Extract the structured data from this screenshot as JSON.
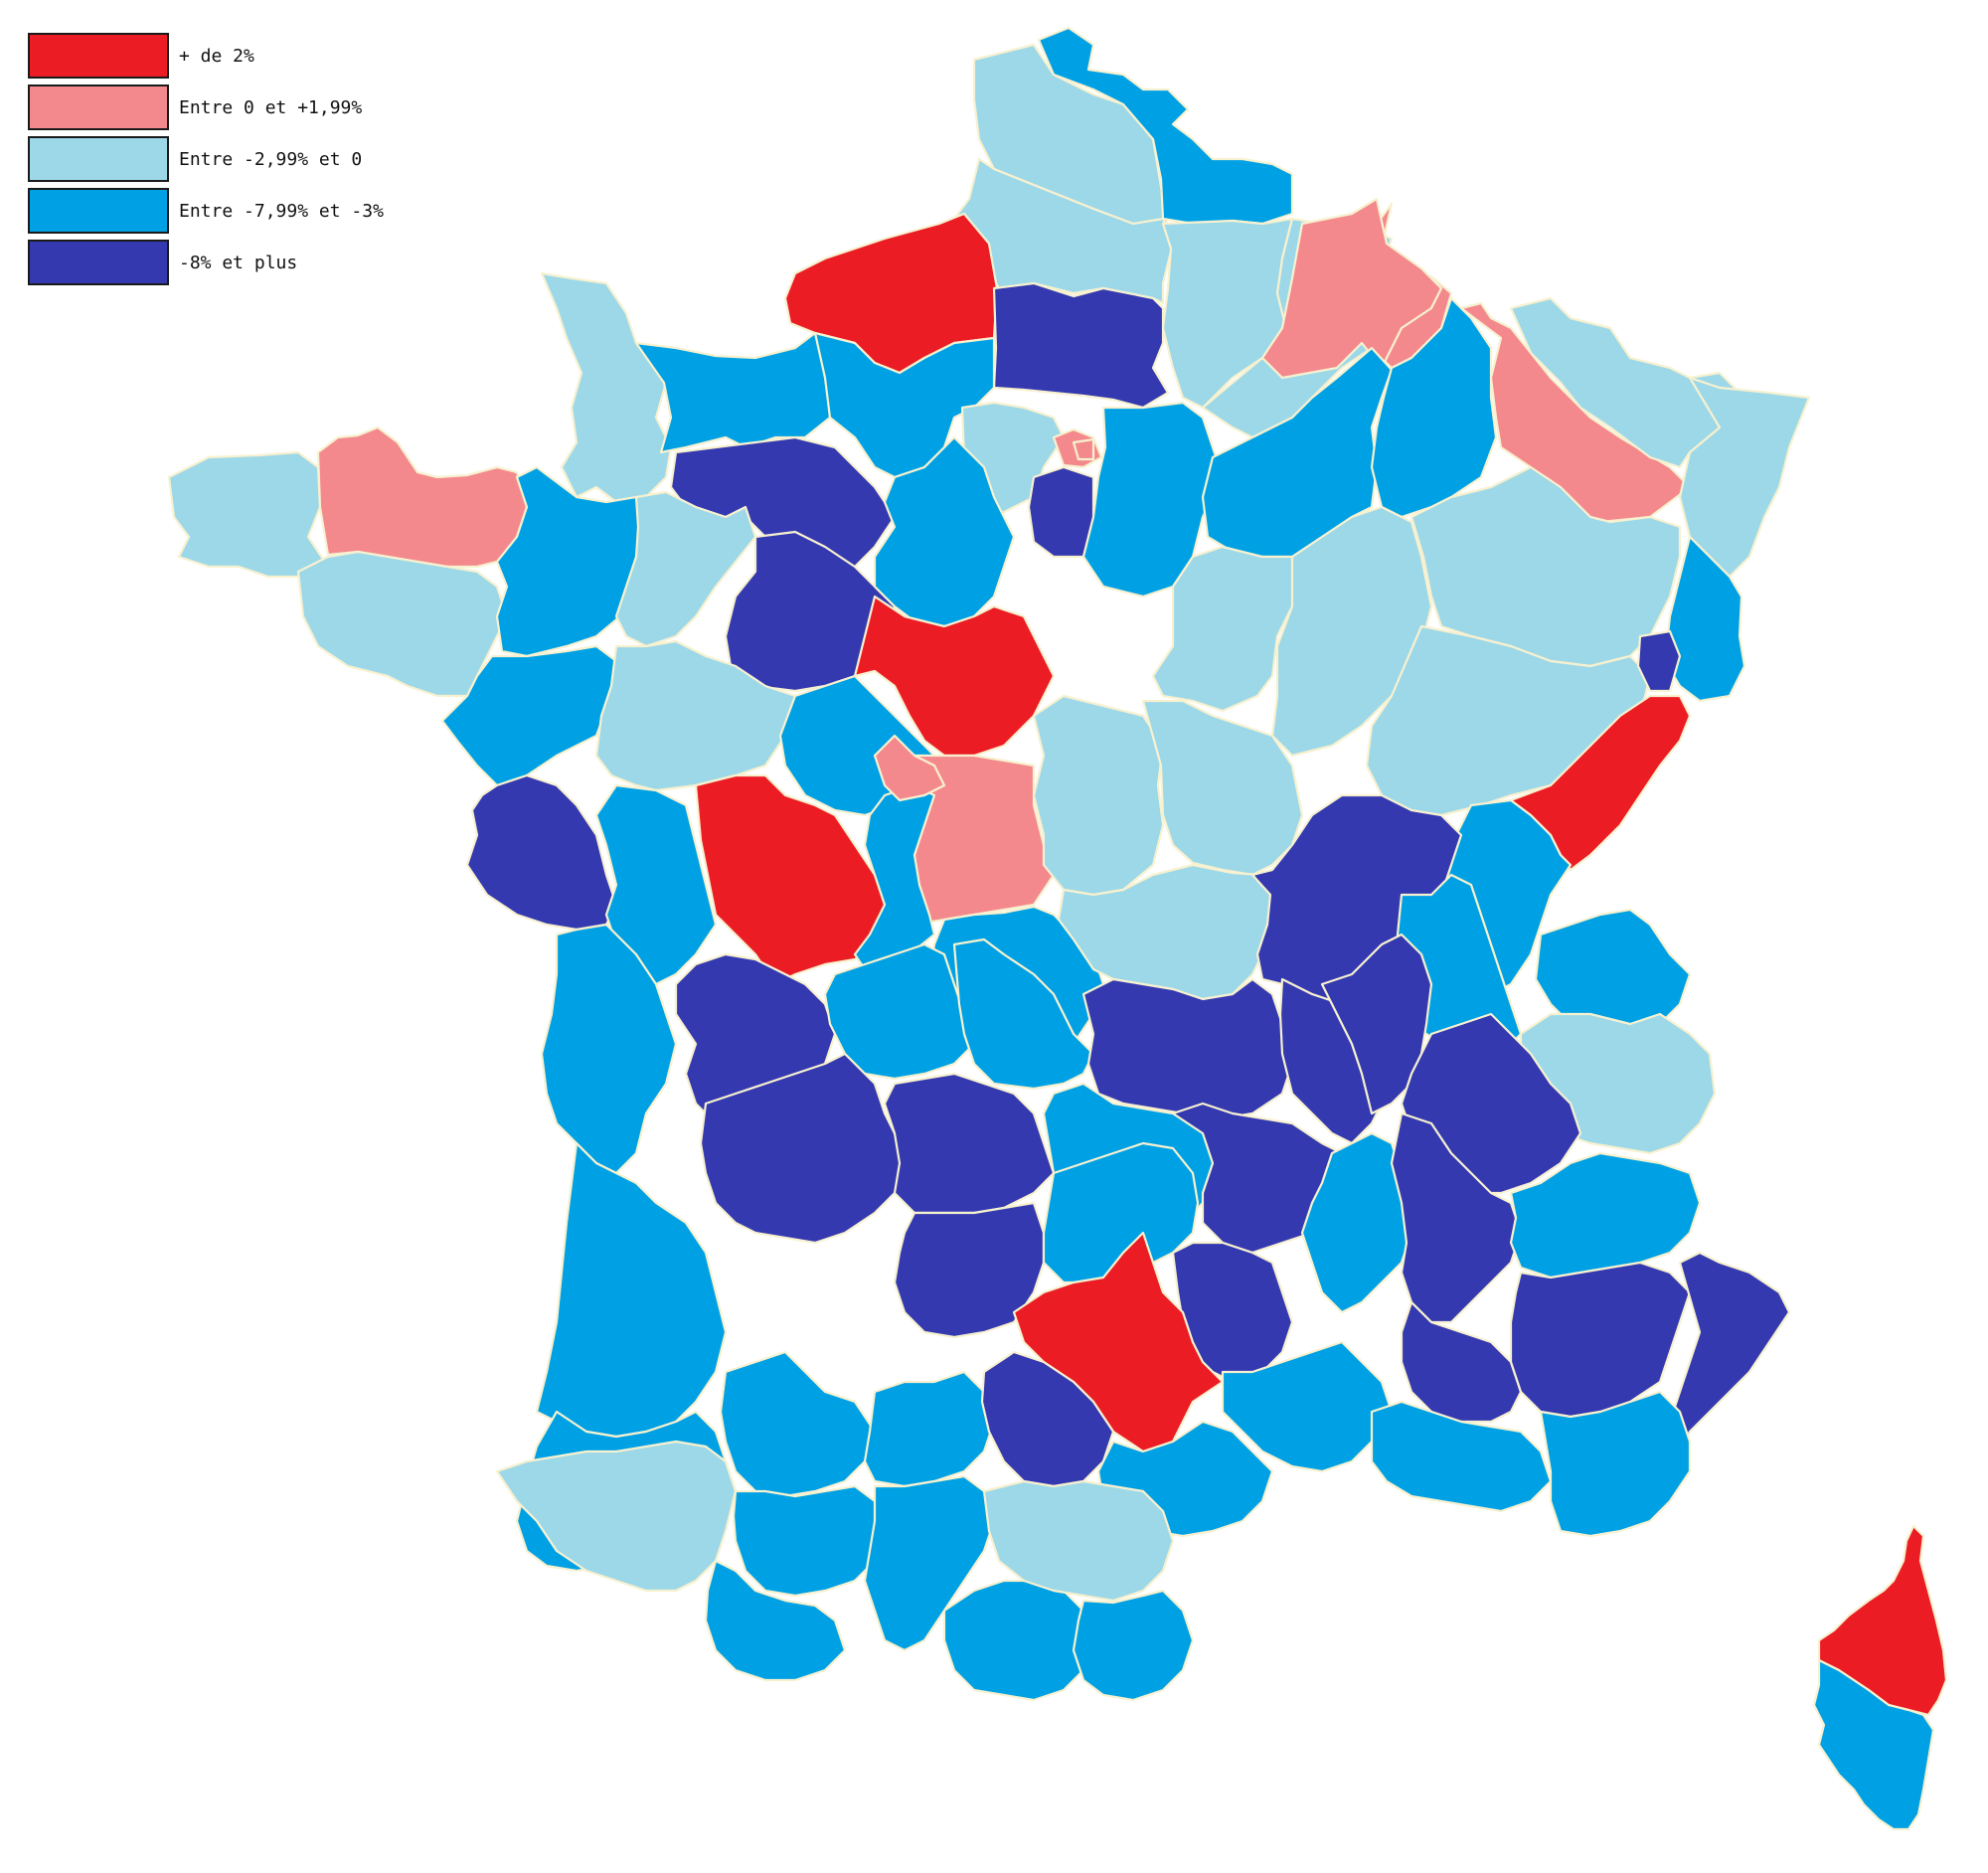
{
  "legend": {
    "items": [
      {
        "key": "plus2",
        "label": "+ de 2%",
        "color": "#ec1c24"
      },
      {
        "key": "0to2",
        "label": "Entre 0 et +1,99%",
        "color": "#f4898d"
      },
      {
        "key": "m3to0",
        "label": "Entre -2,99% et 0",
        "color": "#9dd8e8"
      },
      {
        "key": "m8tom3",
        "label": "Entre -7,99% et -3%",
        "color": "#00a1e4"
      },
      {
        "key": "m8plus",
        "label": "-8% et plus",
        "color": "#3439b0"
      }
    ]
  },
  "regions": [
    {
      "name": "dept-nord-coast",
      "class": "m3to0"
    },
    {
      "name": "dept-nord-east",
      "class": "m8tom3"
    },
    {
      "name": "dept-pas-de-calais",
      "class": "m3to0"
    },
    {
      "name": "dept-somme",
      "class": "m3to0"
    },
    {
      "name": "dept-seine-maritime",
      "class": "plus2"
    },
    {
      "name": "dept-oise",
      "class": "m8plus"
    },
    {
      "name": "dept-aisne",
      "class": "m3to0"
    },
    {
      "name": "dept-ardennes",
      "class": "0to2"
    },
    {
      "name": "dept-manche",
      "class": "m3to0"
    },
    {
      "name": "dept-calvados",
      "class": "m8tom3"
    },
    {
      "name": "dept-eure",
      "class": "m8tom3"
    },
    {
      "name": "dept-val-d-oise",
      "class": "m3to0"
    },
    {
      "name": "dept-paris",
      "class": "0to2"
    },
    {
      "name": "dept-essonne",
      "class": "m8plus"
    },
    {
      "name": "dept-seine-et-marne",
      "class": "m8tom3"
    },
    {
      "name": "dept-marne",
      "class": "m8tom3"
    },
    {
      "name": "dept-meuse",
      "class": "m8tom3"
    },
    {
      "name": "dept-meurthe-et-moselle",
      "class": "0to2"
    },
    {
      "name": "dept-moselle",
      "class": "m3to0"
    },
    {
      "name": "dept-bas-rhin",
      "class": "m3to0"
    },
    {
      "name": "dept-haut-rhin",
      "class": "m8tom3"
    },
    {
      "name": "dept-finistere",
      "class": "m3to0"
    },
    {
      "name": "dept-cotes-d-armor",
      "class": "0to2"
    },
    {
      "name": "dept-morbihan",
      "class": "m3to0"
    },
    {
      "name": "dept-ille-et-vilaine",
      "class": "m8tom3"
    },
    {
      "name": "dept-orne",
      "class": "m8plus"
    },
    {
      "name": "dept-mayenne",
      "class": "m3to0"
    },
    {
      "name": "dept-sarthe",
      "class": "m8plus"
    },
    {
      "name": "dept-eure-et-loir",
      "class": "m8tom3"
    },
    {
      "name": "dept-loiret",
      "class": "plus2"
    },
    {
      "name": "dept-loire-atlantique",
      "class": "m8tom3"
    },
    {
      "name": "dept-maine-et-loire",
      "class": "m3to0"
    },
    {
      "name": "dept-indre-et-loire",
      "class": "m8tom3"
    },
    {
      "name": "dept-loir-et-cher",
      "class": "0to2"
    },
    {
      "name": "dept-yonne",
      "class": "m3to0"
    },
    {
      "name": "dept-cote-d-or",
      "class": "m3to0"
    },
    {
      "name": "dept-aube",
      "class": "m3to0"
    },
    {
      "name": "dept-haute-marne",
      "class": "m3to0"
    },
    {
      "name": "dept-vosges",
      "class": "m3to0"
    },
    {
      "name": "dept-haute-saone",
      "class": "m3to0"
    },
    {
      "name": "dept-territoire-de-belfort",
      "class": "m8plus"
    },
    {
      "name": "dept-doubs",
      "class": "plus2"
    },
    {
      "name": "dept-jura",
      "class": "m8tom3"
    },
    {
      "name": "dept-vendee",
      "class": "m8plus"
    },
    {
      "name": "dept-deux-sevres",
      "class": "m8tom3"
    },
    {
      "name": "dept-vienne",
      "class": "plus2"
    },
    {
      "name": "dept-indre",
      "class": "m8tom3"
    },
    {
      "name": "dept-cher",
      "class": "m8tom3"
    },
    {
      "name": "dept-nievre",
      "class": "m3to0"
    },
    {
      "name": "dept-saone-et-loire",
      "class": "m8plus"
    },
    {
      "name": "dept-ain",
      "class": "m8tom3"
    },
    {
      "name": "dept-haute-savoie",
      "class": "m8tom3"
    },
    {
      "name": "dept-savoie",
      "class": "m3to0"
    },
    {
      "name": "dept-charente-maritime",
      "class": "m8tom3"
    },
    {
      "name": "dept-charente",
      "class": "m8plus"
    },
    {
      "name": "dept-haute-vienne",
      "class": "m8tom3"
    },
    {
      "name": "dept-creuse",
      "class": "m8tom3"
    },
    {
      "name": "dept-allier",
      "class": "m8plus"
    },
    {
      "name": "dept-loire",
      "class": "m8plus"
    },
    {
      "name": "dept-rhone",
      "class": "m8plus"
    },
    {
      "name": "dept-isere",
      "class": "m8plus"
    },
    {
      "name": "dept-dordogne",
      "class": "m8plus"
    },
    {
      "name": "dept-correze",
      "class": "m8plus"
    },
    {
      "name": "dept-puy-de-dome",
      "class": "m8tom3"
    },
    {
      "name": "dept-haute-loire",
      "class": "m8plus"
    },
    {
      "name": "dept-ardeche",
      "class": "m8tom3"
    },
    {
      "name": "dept-drome",
      "class": "m8plus"
    },
    {
      "name": "dept-hautes-alpes",
      "class": "m8tom3"
    },
    {
      "name": "dept-gironde",
      "class": "m8tom3"
    },
    {
      "name": "dept-lot",
      "class": "m8plus"
    },
    {
      "name": "dept-cantal",
      "class": "m8tom3"
    },
    {
      "name": "dept-lozere",
      "class": "m8plus"
    },
    {
      "name": "dept-aveyron",
      "class": "plus2"
    },
    {
      "name": "dept-vaucluse",
      "class": "m8plus"
    },
    {
      "name": "dept-alpes-de-haute-provence",
      "class": "m8plus"
    },
    {
      "name": "dept-alpes-maritimes",
      "class": "m8plus"
    },
    {
      "name": "dept-landes",
      "class": "m8tom3"
    },
    {
      "name": "dept-lot-et-garonne",
      "class": "m8tom3"
    },
    {
      "name": "dept-tarn-et-garonne",
      "class": "m8tom3"
    },
    {
      "name": "dept-tarn",
      "class": "m8plus"
    },
    {
      "name": "dept-gard",
      "class": "m8tom3"
    },
    {
      "name": "dept-herault",
      "class": "m8tom3"
    },
    {
      "name": "dept-bouches-du-rhone",
      "class": "m8tom3"
    },
    {
      "name": "dept-var",
      "class": "m8tom3"
    },
    {
      "name": "dept-pyrenees-atlantiques",
      "class": "m3to0"
    },
    {
      "name": "dept-gers",
      "class": "m8tom3"
    },
    {
      "name": "dept-haute-garonne",
      "class": "m8tom3"
    },
    {
      "name": "dept-hautes-pyrenees",
      "class": "m8tom3"
    },
    {
      "name": "dept-ariege",
      "class": "m8tom3"
    },
    {
      "name": "dept-aude",
      "class": "m3to0"
    },
    {
      "name": "dept-pyrenees-orientales",
      "class": "m8tom3"
    },
    {
      "name": "dept-haute-corse",
      "class": "plus2"
    },
    {
      "name": "dept-corse-du-sud",
      "class": "m8tom3"
    }
  ]
}
